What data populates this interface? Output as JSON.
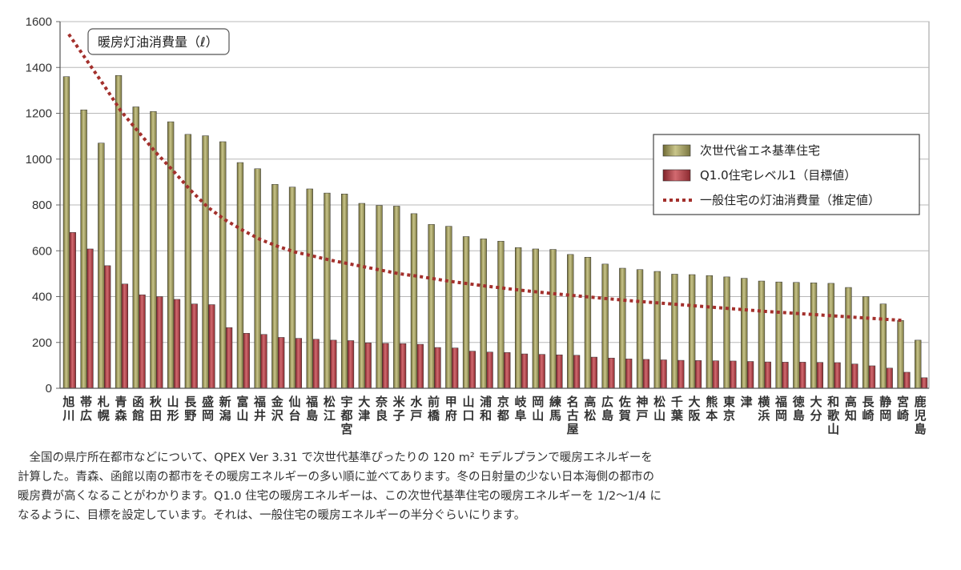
{
  "chart_data": {
    "type": "bar",
    "title": "暖房灯油消費量（ℓ）",
    "ylim": [
      0,
      1600
    ],
    "yticks": [
      0,
      200,
      400,
      600,
      800,
      1000,
      1200,
      1400,
      1600
    ],
    "categories": [
      "旭川",
      "帯広",
      "札幌",
      "青森",
      "函館",
      "秋田",
      "山形",
      "長野",
      "盛岡",
      "新潟",
      "富山",
      "福井",
      "金沢",
      "仙台",
      "福島",
      "松江",
      "宇都宮",
      "大津",
      "奈良",
      "米子",
      "水戸",
      "前橋",
      "甲府",
      "山口",
      "浦和",
      "京都",
      "岐阜",
      "岡山",
      "練馬",
      "名古屋",
      "高松",
      "広島",
      "佐賀",
      "神戸",
      "松山",
      "千葉",
      "大阪",
      "熊本",
      "東京",
      "津",
      "横浜",
      "福岡",
      "徳島",
      "大分",
      "和歌山",
      "高知",
      "長崎",
      "静岡",
      "宮崎",
      "鹿児島"
    ],
    "series": [
      {
        "name": "次世代省エネ基準住宅",
        "kind": "bar",
        "color": "#8e8a4c",
        "values": [
          1360,
          1215,
          1070,
          1365,
          1228,
          1208,
          1163,
          1108,
          1102,
          1076,
          985,
          958,
          890,
          878,
          870,
          852,
          848,
          807,
          798,
          795,
          762,
          715,
          707,
          662,
          652,
          642,
          614,
          608,
          606,
          584,
          572,
          542,
          524,
          518,
          510,
          498,
          496,
          492,
          486,
          480,
          468,
          464,
          462,
          460,
          458,
          440,
          400,
          368,
          296,
          210
        ]
      },
      {
        "name": "Q1.0住宅レベル1（目標値）",
        "kind": "bar",
        "color": "#a8343c",
        "values": [
          680,
          608,
          535,
          455,
          408,
          400,
          388,
          368,
          365,
          265,
          240,
          235,
          222,
          218,
          214,
          210,
          208,
          198,
          196,
          195,
          192,
          178,
          176,
          162,
          158,
          156,
          150,
          148,
          146,
          144,
          136,
          132,
          128,
          126,
          124,
          122,
          121,
          120,
          119,
          117,
          115,
          114,
          114,
          113,
          112,
          106,
          98,
          88,
          70,
          46
        ]
      },
      {
        "name": "一般住宅の灯油消費量（推定値）",
        "kind": "line",
        "color": "#a3302c",
        "values": [
          1545,
          1435,
          1325,
          1210,
          1120,
          1030,
          950,
          865,
          790,
          735,
          690,
          650,
          620,
          595,
          578,
          560,
          545,
          530,
          515,
          500,
          490,
          478,
          466,
          456,
          446,
          437,
          428,
          420,
          412,
          405,
          398,
          391,
          384,
          378,
          372,
          366,
          360,
          354,
          348,
          342,
          336,
          331,
          326,
          321,
          316,
          311,
          306,
          301,
          296,
          null
        ]
      }
    ],
    "legend_position": "right-middle"
  },
  "caption": "　全国の県庁所在都市などについて、QPEX Ver 3.31 で次世代基準ぴったりの 120 m² モデルプランで暖房エネルギーを計算した。青森、函館以南の都市をその暖房エネルギーの多い順に並べてあります。冬の日射量の少ない日本海側の都市の暖房費が高くなることがわかります。Q1.0 住宅の暖房エネルギーは、この次世代基準住宅の暖房エネルギーを 1/2〜1/4 になるように、目標を設定しています。それは、一般住宅の暖房エネルギーの半分ぐらいにります。"
}
